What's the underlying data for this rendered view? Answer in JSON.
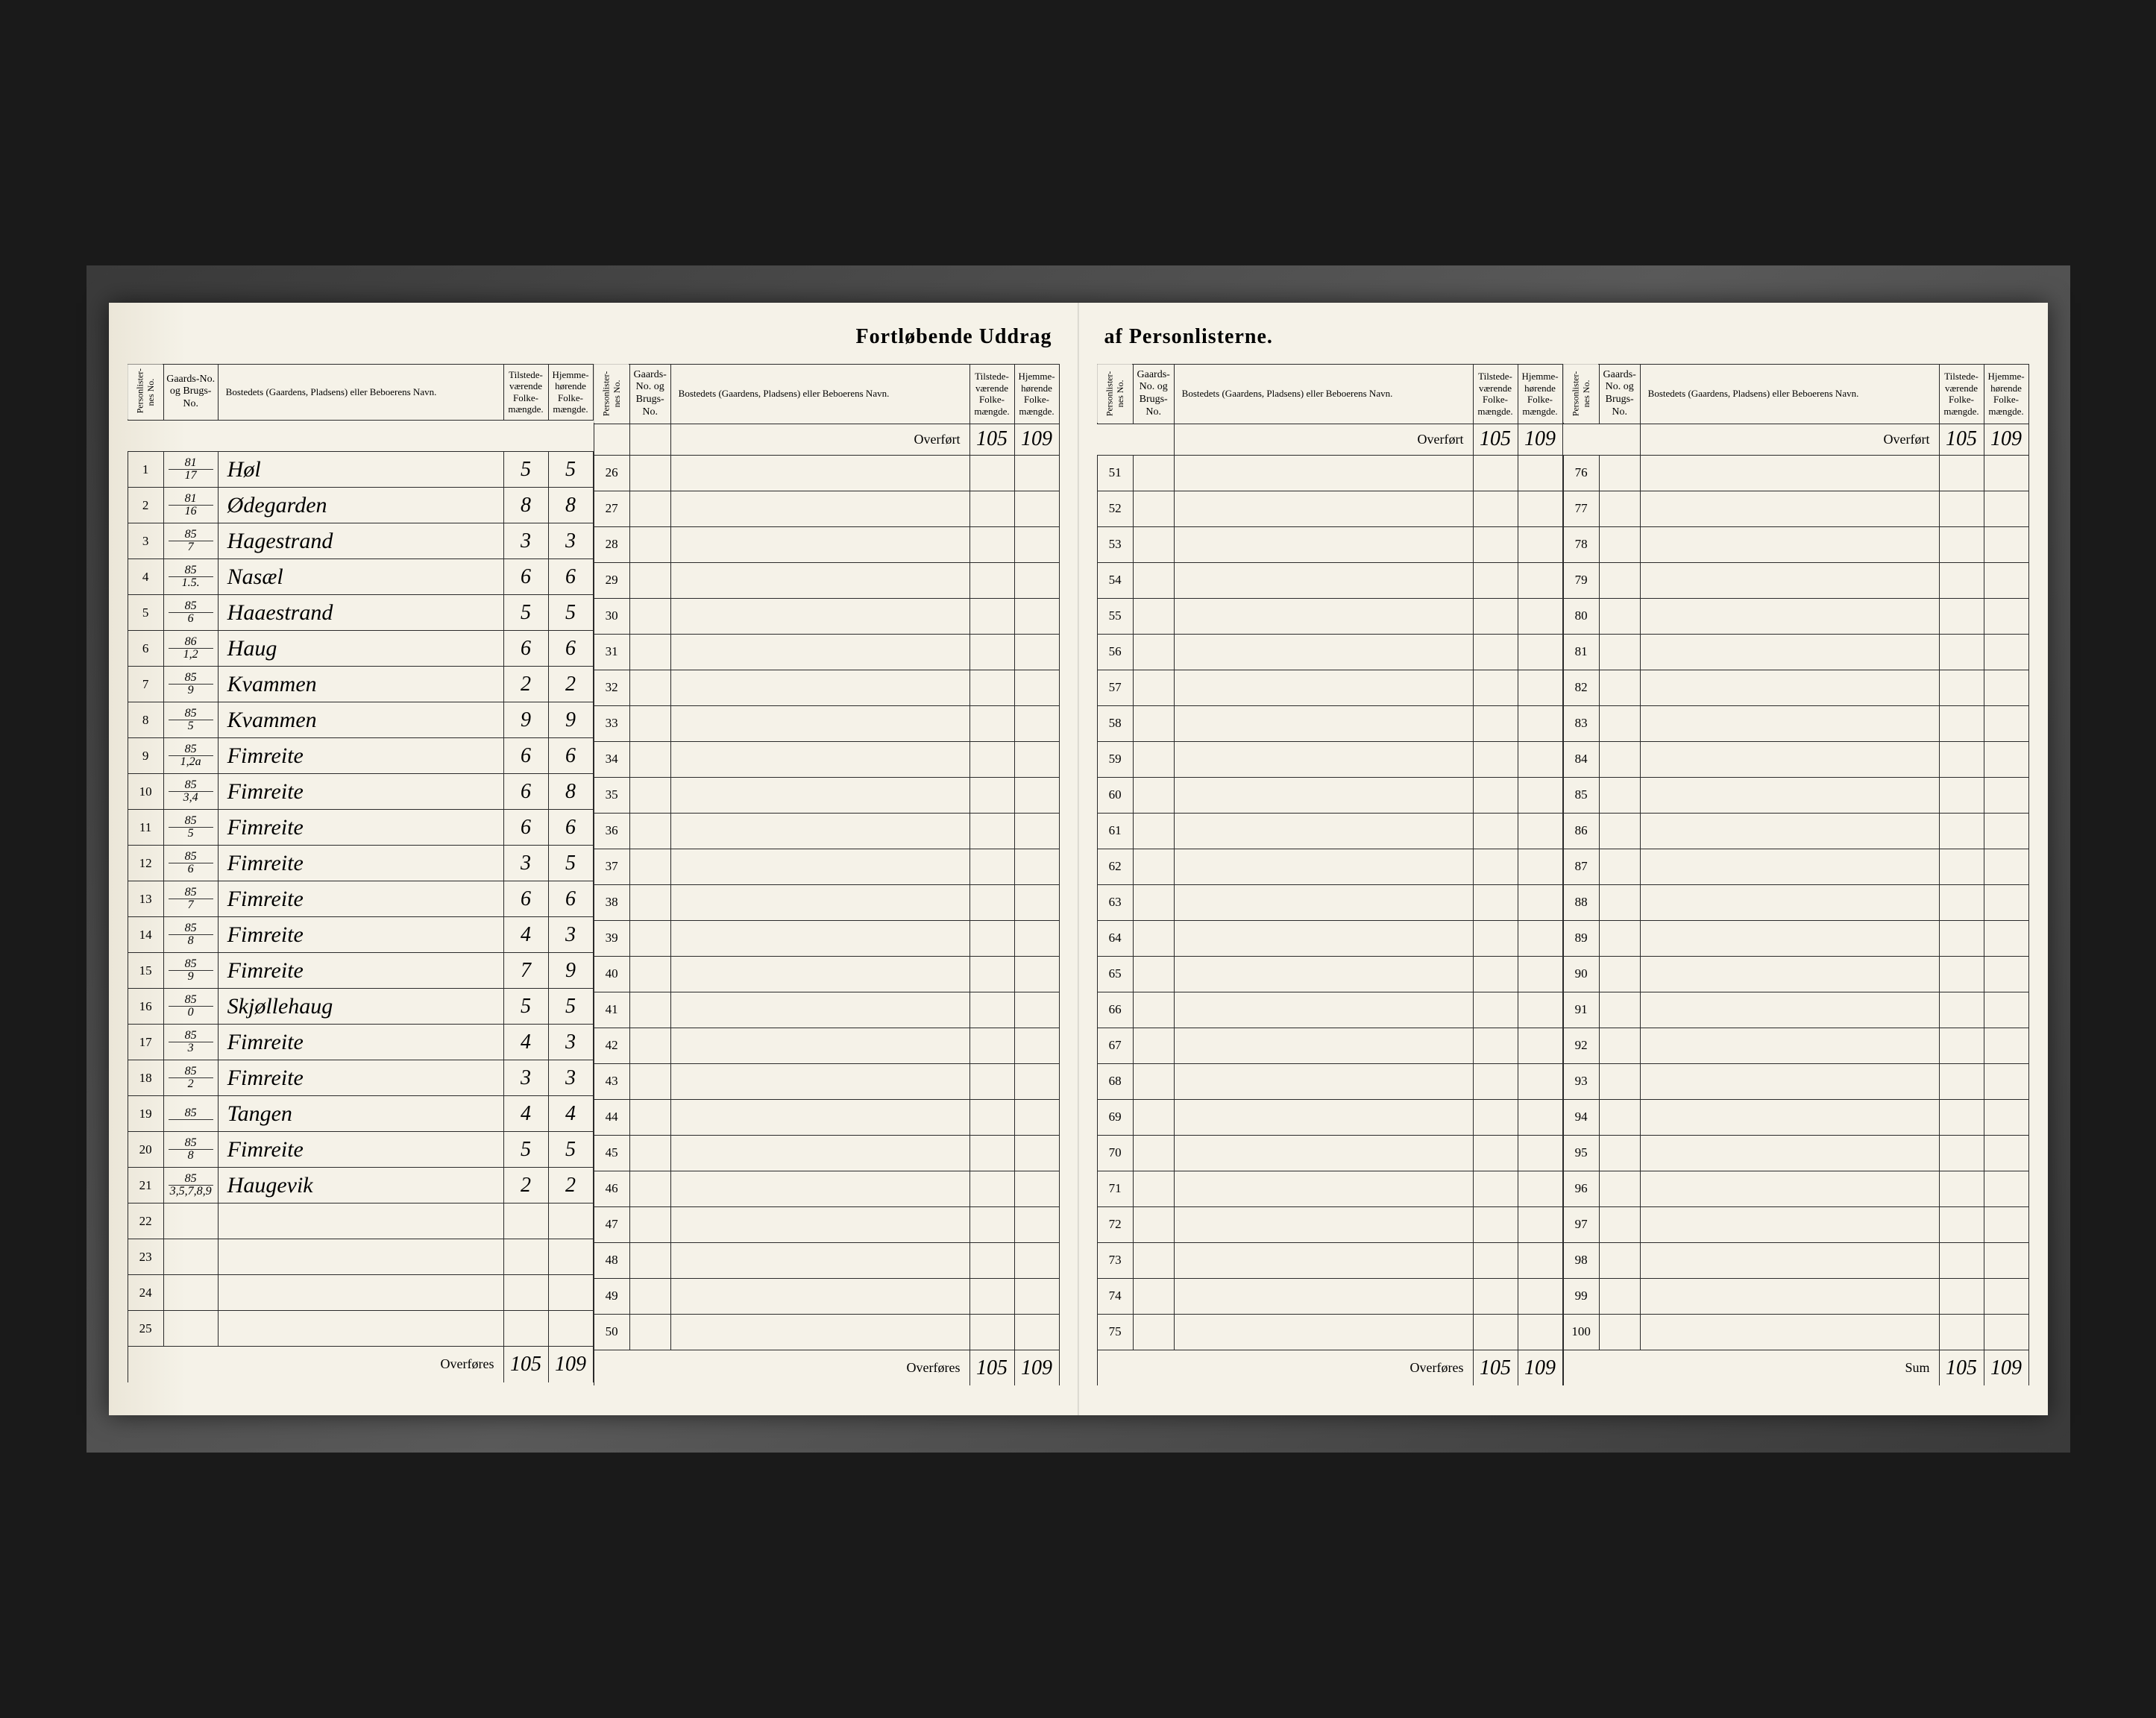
{
  "title_left": "Fortløbende Uddrag",
  "title_right": "af Personlisterne.",
  "headers": {
    "person": "Personlister-nes No.",
    "gaard": "Gaards-No. og Brugs-No.",
    "bosted": "Bostedets (Gaardens, Pladsens) eller Beboerens Navn.",
    "tilstede": "Tilstede-værende Folke-mængde.",
    "hjemme": "Hjemme-hørende Folke-mængde."
  },
  "overfort_label": "Overført",
  "overfores_label": "Overføres",
  "sum_label": "Sum",
  "overfort_values": {
    "tilstede": "105",
    "hjemme": "109"
  },
  "rows_q1": [
    {
      "n": "1",
      "g_top": "81",
      "g_bot": "17",
      "name": "Høl",
      "t": "5",
      "h": "5"
    },
    {
      "n": "2",
      "g_top": "81",
      "g_bot": "16",
      "name": "Ødegarden",
      "t": "8",
      "h": "8"
    },
    {
      "n": "3",
      "g_top": "85",
      "g_bot": "7",
      "name": "Hagestrand",
      "t": "3",
      "h": "3"
    },
    {
      "n": "4",
      "g_top": "85",
      "g_bot": "1.5.",
      "name": "Nasæl",
      "t": "6",
      "h": "6"
    },
    {
      "n": "5",
      "g_top": "85",
      "g_bot": "6",
      "name": "Haaestrand",
      "t": "5",
      "h": "5"
    },
    {
      "n": "6",
      "g_top": "86",
      "g_bot": "1,2",
      "name": "Haug",
      "t": "6",
      "h": "6"
    },
    {
      "n": "7",
      "g_top": "85",
      "g_bot": "9",
      "name": "Kvammen",
      "t": "2",
      "h": "2"
    },
    {
      "n": "8",
      "g_top": "85",
      "g_bot": "5",
      "name": "Kvammen",
      "t": "9",
      "h": "9"
    },
    {
      "n": "9",
      "g_top": "85",
      "g_bot": "1,2a",
      "name": "Fimreite",
      "t": "6",
      "h": "6"
    },
    {
      "n": "10",
      "g_top": "85",
      "g_bot": "3,4",
      "name": "Fimreite",
      "t": "6",
      "h": "8"
    },
    {
      "n": "11",
      "g_top": "85",
      "g_bot": "5",
      "name": "Fimreite",
      "t": "6",
      "h": "6"
    },
    {
      "n": "12",
      "g_top": "85",
      "g_bot": "6",
      "name": "Fimreite",
      "t": "3",
      "h": "5"
    },
    {
      "n": "13",
      "g_top": "85",
      "g_bot": "7",
      "name": "Fimreite",
      "t": "6",
      "h": "6"
    },
    {
      "n": "14",
      "g_top": "85",
      "g_bot": "8",
      "name": "Fimreite",
      "t": "4",
      "h": "3"
    },
    {
      "n": "15",
      "g_top": "85",
      "g_bot": "9",
      "name": "Fimreite",
      "t": "7",
      "h": "9"
    },
    {
      "n": "16",
      "g_top": "85",
      "g_bot": "0",
      "name": "Skjøllehaug",
      "t": "5",
      "h": "5"
    },
    {
      "n": "17",
      "g_top": "85",
      "g_bot": "3",
      "name": "Fimreite",
      "t": "4",
      "h": "3"
    },
    {
      "n": "18",
      "g_top": "85",
      "g_bot": "2",
      "name": "Fimreite",
      "t": "3",
      "h": "3"
    },
    {
      "n": "19",
      "g_top": "85",
      "g_bot": "",
      "name": "Tangen",
      "t": "4",
      "h": "4"
    },
    {
      "n": "20",
      "g_top": "85",
      "g_bot": "8",
      "name": "Fimreite",
      "t": "5",
      "h": "5"
    },
    {
      "n": "21",
      "g_top": "85",
      "g_bot": "3,5,7,8,9",
      "name": "Haugevik",
      "t": "2",
      "h": "2"
    },
    {
      "n": "22",
      "g_top": "",
      "g_bot": "",
      "name": "",
      "t": "",
      "h": ""
    },
    {
      "n": "23",
      "g_top": "",
      "g_bot": "",
      "name": "",
      "t": "",
      "h": ""
    },
    {
      "n": "24",
      "g_top": "",
      "g_bot": "",
      "name": "",
      "t": "",
      "h": ""
    },
    {
      "n": "25",
      "g_top": "",
      "g_bot": "",
      "name": "",
      "t": "",
      "h": ""
    }
  ],
  "rows_q2_start": 26,
  "rows_q3_start": 51,
  "rows_q4_start": 76,
  "footer_q1": {
    "label": "Overføres",
    "t": "105",
    "h": "109"
  },
  "footer_q2": {
    "label": "Overføres",
    "t": "105",
    "h": "109"
  },
  "footer_q3": {
    "label": "Overføres",
    "t": "105",
    "h": "109"
  },
  "footer_q4": {
    "label": "Sum",
    "t": "105",
    "h": "109"
  },
  "colors": {
    "paper": "#f5f2e8",
    "ink": "#2a2a2a",
    "frame": "#3a3a3a"
  }
}
